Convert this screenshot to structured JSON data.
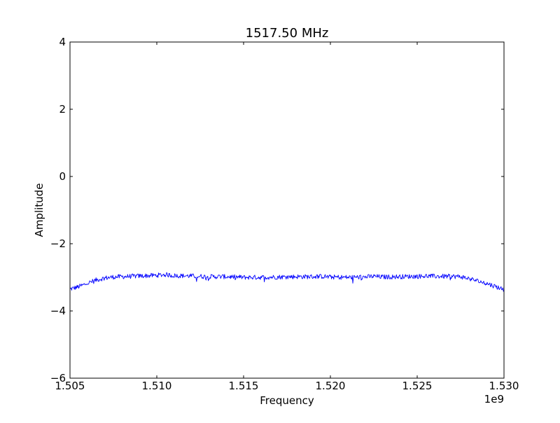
{
  "chart_data": {
    "type": "line",
    "title": "1517.50 MHz",
    "xlabel": "Frequency",
    "ylabel": "Amplitude",
    "x_offset_label": "1e9",
    "xlim": [
      1.505,
      1.53
    ],
    "ylim": [
      -6,
      4
    ],
    "x_ticks": [
      1.505,
      1.51,
      1.515,
      1.52,
      1.525,
      1.53
    ],
    "x_tick_labels": [
      "1.505",
      "1.510",
      "1.515",
      "1.520",
      "1.525",
      "1.530"
    ],
    "y_ticks": [
      4,
      2,
      0,
      -2,
      -4,
      -6
    ],
    "y_tick_labels": [
      "4",
      "2",
      "0",
      "−2",
      "−4",
      "−6"
    ],
    "grid": false,
    "series": [
      {
        "color": "#0000ff",
        "x": [
          1.505,
          1.5055,
          1.506,
          1.5065,
          1.507,
          1.5075,
          1.508,
          1.509,
          1.51,
          1.5105,
          1.511,
          1.512,
          1.513,
          1.514,
          1.515,
          1.516,
          1.517,
          1.518,
          1.519,
          1.5195,
          1.52,
          1.521,
          1.522,
          1.5225,
          1.523,
          1.524,
          1.525,
          1.5255,
          1.526,
          1.527,
          1.5275,
          1.528,
          1.5285,
          1.529,
          1.5295,
          1.53
        ],
        "y": [
          -3.35,
          -3.28,
          -3.18,
          -3.08,
          -3.02,
          -2.99,
          -2.98,
          -2.96,
          -2.94,
          -2.92,
          -2.95,
          -2.96,
          -2.98,
          -2.98,
          -3.0,
          -3.0,
          -2.99,
          -2.98,
          -2.98,
          -2.97,
          -2.99,
          -3.0,
          -2.99,
          -2.97,
          -2.99,
          -2.98,
          -2.97,
          -2.96,
          -2.97,
          -2.97,
          -2.98,
          -3.04,
          -3.11,
          -3.18,
          -3.27,
          -3.36
        ]
      }
    ]
  }
}
